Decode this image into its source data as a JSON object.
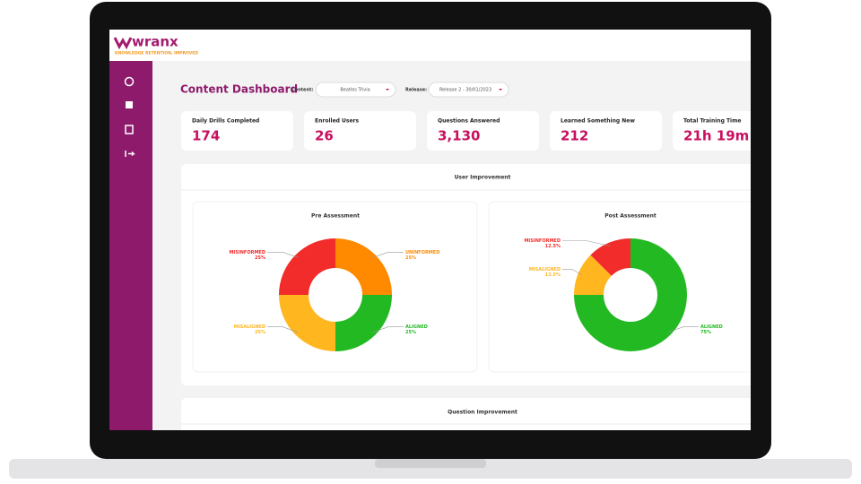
{
  "header": {
    "logo": "wranx",
    "tagline": "KNOWLEDGE RETENTION, IMPROVED"
  },
  "dashboard": {
    "title": "Content Dashboard",
    "filters": [
      {
        "label": "Content:",
        "value": "Beatles Trivia"
      },
      {
        "label": "Release:",
        "value": "Release 2 - 30/01/2023"
      }
    ]
  },
  "stats": [
    {
      "label": "Daily Drills Completed",
      "value": 174
    },
    {
      "label": "Enrolled Users",
      "value": 26
    },
    {
      "label": "Questions Answered",
      "value": "3,130"
    },
    {
      "label": "Learned Something New",
      "value": 212
    },
    {
      "label": "Total Training Time",
      "value": "21h 19m"
    }
  ],
  "user_improvement": {
    "title": "User Improvement",
    "charts": [
      {
        "type": "pie",
        "title": "Pre Assessment",
        "categories": [
          "UNINFORMED",
          "ALIGNED",
          "MISALIGNED",
          "MISINFORMED"
        ],
        "values": [
          25,
          25,
          25,
          25
        ],
        "value_labels": [
          "25%",
          "25%",
          "25%",
          "25%"
        ],
        "colors": [
          "#ff8a00",
          "#22b922",
          "#ffb61f",
          "#f22b2b"
        ]
      },
      {
        "type": "pie",
        "title": "Post Assessment",
        "categories": [
          "ALIGNED",
          "MISALIGNED",
          "MISINFORMED"
        ],
        "values": [
          75,
          12.5,
          12.5
        ],
        "value_labels": [
          "75%",
          "12.5%",
          "12.5%"
        ],
        "colors": [
          "#22b922",
          "#ffb61f",
          "#f22b2b"
        ]
      }
    ]
  },
  "question_improvement": {
    "title": "Question Improvement"
  }
}
